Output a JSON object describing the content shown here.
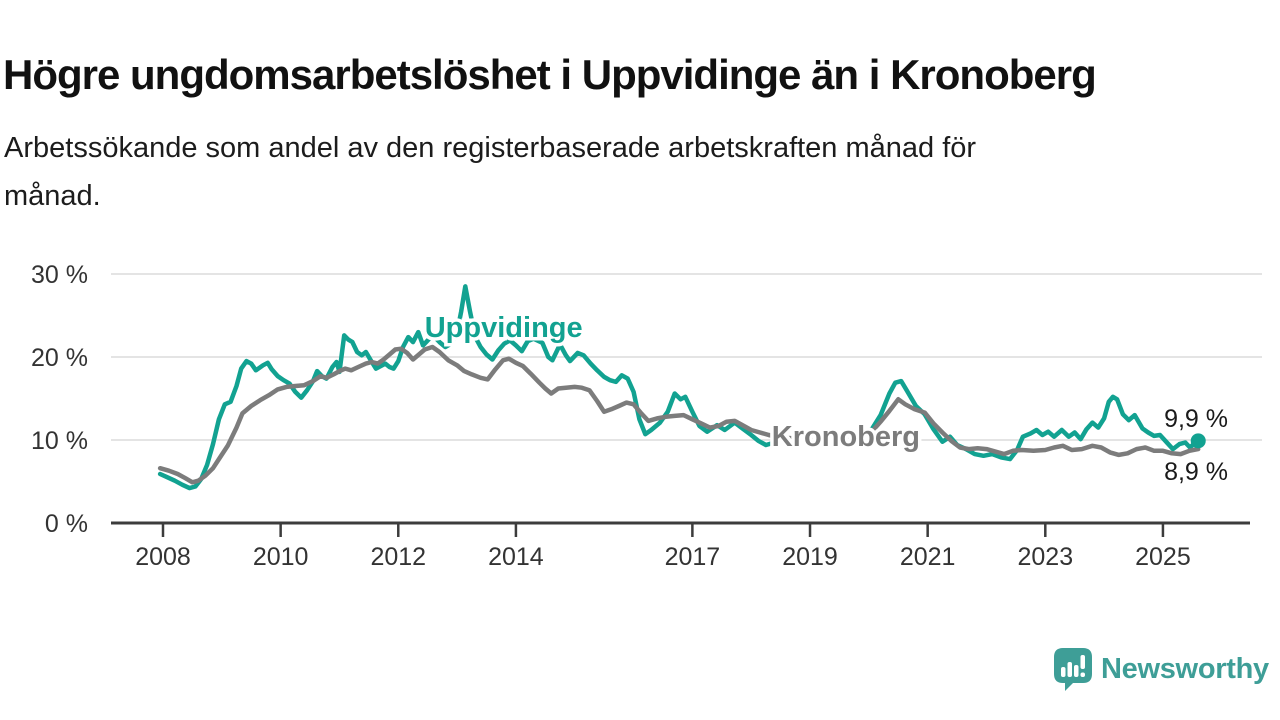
{
  "title": "Högre ungdomsarbetslöshet i Uppvidinge än i Kronoberg",
  "subtitle_lines": [
    "Arbetssökande som andel av den registerbaserade arbetskraften månad för",
    "månad."
  ],
  "footer": {
    "brand": "Newsworthy",
    "logo_icon": "speech-bubble-bar-chart-icon",
    "brand_color": "#3E9E97"
  },
  "chart_data": {
    "type": "line",
    "title": "Högre ungdomsarbetslöshet i Uppvidinge än i Kronoberg",
    "subtitle": "Arbetssökande som andel av den registerbaserade arbetskraften månad för månad.",
    "unit": "%",
    "grid": "horizontal-only",
    "colors": {
      "grid": "#DBDBDB",
      "axis": "#3C3C3C",
      "axis_text": "#333333",
      "value_text": "#1A1A1A"
    },
    "x_axis": {
      "label": "",
      "ticks": [
        2008,
        2010,
        2012,
        2014,
        2017,
        2019,
        2021,
        2023,
        2025
      ],
      "range": [
        2007.1,
        2026.5
      ]
    },
    "y_axis": {
      "label": "",
      "ticks": [
        0,
        10,
        20,
        30
      ],
      "tick_labels": [
        "0 %",
        "10 %",
        "20 %",
        "30 %"
      ],
      "range": [
        0,
        30
      ]
    },
    "series": [
      {
        "name": "Uppvidinge",
        "color": "#12A291",
        "end_label": "9,9 %",
        "end_value": 9.9,
        "end_dot": true,
        "label_pos": [
          2012.45,
          22.4
        ],
        "points": [
          [
            2007.95,
            5.9
          ],
          [
            2008.08,
            5.5
          ],
          [
            2008.2,
            5.1
          ],
          [
            2008.33,
            4.6
          ],
          [
            2008.45,
            4.2
          ],
          [
            2008.55,
            4.4
          ],
          [
            2008.65,
            5.3
          ],
          [
            2008.75,
            7.0
          ],
          [
            2008.85,
            9.5
          ],
          [
            2008.95,
            12.5
          ],
          [
            2009.05,
            14.3
          ],
          [
            2009.15,
            14.6
          ],
          [
            2009.25,
            16.5
          ],
          [
            2009.33,
            18.6
          ],
          [
            2009.42,
            19.5
          ],
          [
            2009.5,
            19.2
          ],
          [
            2009.58,
            18.4
          ],
          [
            2009.7,
            19.0
          ],
          [
            2009.78,
            19.3
          ],
          [
            2009.85,
            18.5
          ],
          [
            2009.95,
            17.7
          ],
          [
            2010.05,
            17.2
          ],
          [
            2010.15,
            16.8
          ],
          [
            2010.25,
            15.8
          ],
          [
            2010.35,
            15.1
          ],
          [
            2010.45,
            16.0
          ],
          [
            2010.55,
            17.1
          ],
          [
            2010.62,
            18.3
          ],
          [
            2010.7,
            17.7
          ],
          [
            2010.78,
            17.4
          ],
          [
            2010.88,
            18.8
          ],
          [
            2010.95,
            19.4
          ],
          [
            2011.0,
            18.2
          ],
          [
            2011.08,
            22.6
          ],
          [
            2011.15,
            22.1
          ],
          [
            2011.22,
            21.8
          ],
          [
            2011.3,
            20.6
          ],
          [
            2011.38,
            20.2
          ],
          [
            2011.45,
            20.6
          ],
          [
            2011.55,
            19.4
          ],
          [
            2011.62,
            18.6
          ],
          [
            2011.7,
            18.9
          ],
          [
            2011.78,
            19.2
          ],
          [
            2011.85,
            18.8
          ],
          [
            2011.92,
            18.6
          ],
          [
            2012.0,
            19.5
          ],
          [
            2012.08,
            21.2
          ],
          [
            2012.17,
            22.4
          ],
          [
            2012.25,
            21.8
          ],
          [
            2012.34,
            23.0
          ],
          [
            2012.42,
            21.4
          ],
          [
            2012.5,
            22.0
          ],
          [
            2012.59,
            22.6
          ],
          [
            2012.7,
            21.8
          ],
          [
            2012.8,
            21.2
          ],
          [
            2012.9,
            21.6
          ],
          [
            2013.0,
            23.0
          ],
          [
            2013.07,
            25.5
          ],
          [
            2013.14,
            28.5
          ],
          [
            2013.22,
            25.5
          ],
          [
            2013.31,
            22.4
          ],
          [
            2013.4,
            21.2
          ],
          [
            2013.5,
            20.3
          ],
          [
            2013.6,
            19.7
          ],
          [
            2013.7,
            20.8
          ],
          [
            2013.8,
            21.6
          ],
          [
            2013.9,
            22.0
          ],
          [
            2014.0,
            21.4
          ],
          [
            2014.1,
            20.7
          ],
          [
            2014.2,
            21.9
          ],
          [
            2014.3,
            22.2
          ],
          [
            2014.45,
            21.7
          ],
          [
            2014.55,
            20.0
          ],
          [
            2014.62,
            19.6
          ],
          [
            2014.75,
            21.5
          ],
          [
            2014.85,
            20.2
          ],
          [
            2014.92,
            19.5
          ],
          [
            2015.05,
            20.5
          ],
          [
            2015.15,
            20.2
          ],
          [
            2015.27,
            19.2
          ],
          [
            2015.38,
            18.4
          ],
          [
            2015.5,
            17.6
          ],
          [
            2015.6,
            17.2
          ],
          [
            2015.7,
            17.0
          ],
          [
            2015.8,
            17.8
          ],
          [
            2015.9,
            17.4
          ],
          [
            2016.0,
            15.8
          ],
          [
            2016.1,
            12.5
          ],
          [
            2016.2,
            10.7
          ],
          [
            2016.3,
            11.2
          ],
          [
            2016.45,
            12.1
          ],
          [
            2016.58,
            13.4
          ],
          [
            2016.7,
            15.6
          ],
          [
            2016.8,
            14.9
          ],
          [
            2016.88,
            15.2
          ],
          [
            2017.0,
            13.4
          ],
          [
            2017.12,
            11.7
          ],
          [
            2017.25,
            11.0
          ],
          [
            2017.42,
            11.8
          ],
          [
            2017.55,
            11.2
          ],
          [
            2017.72,
            12.1
          ],
          [
            2017.85,
            11.4
          ],
          [
            2018.0,
            10.6
          ],
          [
            2018.12,
            9.9
          ],
          [
            2018.25,
            9.4
          ],
          [
            2018.4,
            9.7
          ],
          [
            2018.6,
            10.1
          ],
          [
            2018.8,
            10.2
          ],
          [
            2019.0,
            10.0
          ],
          [
            2019.2,
            10.4
          ],
          [
            2019.4,
            10.6
          ],
          [
            2019.55,
            10.3
          ],
          [
            2019.75,
            10.7
          ],
          [
            2019.9,
            11.0
          ],
          [
            2020.05,
            11.3
          ],
          [
            2020.2,
            13.0
          ],
          [
            2020.35,
            15.6
          ],
          [
            2020.45,
            16.9
          ],
          [
            2020.55,
            17.1
          ],
          [
            2020.65,
            15.9
          ],
          [
            2020.8,
            14.1
          ],
          [
            2020.95,
            13.1
          ],
          [
            2021.1,
            11.3
          ],
          [
            2021.25,
            9.8
          ],
          [
            2021.38,
            10.4
          ],
          [
            2021.5,
            9.4
          ],
          [
            2021.65,
            8.9
          ],
          [
            2021.8,
            8.3
          ],
          [
            2021.95,
            8.1
          ],
          [
            2022.1,
            8.3
          ],
          [
            2022.25,
            7.9
          ],
          [
            2022.4,
            7.7
          ],
          [
            2022.52,
            8.8
          ],
          [
            2022.62,
            10.4
          ],
          [
            2022.75,
            10.8
          ],
          [
            2022.85,
            11.2
          ],
          [
            2022.95,
            10.6
          ],
          [
            2023.05,
            11.0
          ],
          [
            2023.15,
            10.4
          ],
          [
            2023.28,
            11.2
          ],
          [
            2023.4,
            10.4
          ],
          [
            2023.5,
            10.9
          ],
          [
            2023.6,
            10.1
          ],
          [
            2023.7,
            11.3
          ],
          [
            2023.8,
            12.1
          ],
          [
            2023.9,
            11.5
          ],
          [
            2024.0,
            12.6
          ],
          [
            2024.08,
            14.6
          ],
          [
            2024.15,
            15.2
          ],
          [
            2024.22,
            14.9
          ],
          [
            2024.32,
            13.1
          ],
          [
            2024.42,
            12.4
          ],
          [
            2024.52,
            13.0
          ],
          [
            2024.65,
            11.4
          ],
          [
            2024.75,
            10.9
          ],
          [
            2024.85,
            10.5
          ],
          [
            2024.95,
            10.6
          ],
          [
            2025.08,
            9.6
          ],
          [
            2025.17,
            8.9
          ],
          [
            2025.28,
            9.5
          ],
          [
            2025.38,
            9.7
          ],
          [
            2025.46,
            9.1
          ],
          [
            2025.55,
            9.7
          ],
          [
            2025.6,
            9.9
          ]
        ]
      },
      {
        "name": "Kronoberg",
        "color": "#7C7C7C",
        "end_label": "8,9 %",
        "end_value": 8.9,
        "end_dot": false,
        "label_pos": [
          2018.35,
          9.3
        ],
        "points": [
          [
            2007.95,
            6.6
          ],
          [
            2008.1,
            6.3
          ],
          [
            2008.25,
            5.9
          ],
          [
            2008.38,
            5.4
          ],
          [
            2008.5,
            4.9
          ],
          [
            2008.6,
            5.1
          ],
          [
            2008.72,
            5.7
          ],
          [
            2008.85,
            6.6
          ],
          [
            2008.95,
            7.7
          ],
          [
            2009.1,
            9.3
          ],
          [
            2009.25,
            11.5
          ],
          [
            2009.35,
            13.2
          ],
          [
            2009.5,
            14.1
          ],
          [
            2009.65,
            14.8
          ],
          [
            2009.8,
            15.4
          ],
          [
            2009.95,
            16.1
          ],
          [
            2010.1,
            16.4
          ],
          [
            2010.25,
            16.5
          ],
          [
            2010.4,
            16.6
          ],
          [
            2010.55,
            17.1
          ],
          [
            2010.68,
            17.7
          ],
          [
            2010.78,
            17.5
          ],
          [
            2010.9,
            17.9
          ],
          [
            2011.0,
            18.3
          ],
          [
            2011.1,
            18.6
          ],
          [
            2011.2,
            18.4
          ],
          [
            2011.32,
            18.8
          ],
          [
            2011.45,
            19.2
          ],
          [
            2011.55,
            19.4
          ],
          [
            2011.65,
            19.2
          ],
          [
            2011.75,
            19.7
          ],
          [
            2011.85,
            20.3
          ],
          [
            2011.95,
            20.9
          ],
          [
            2012.05,
            21.0
          ],
          [
            2012.15,
            20.5
          ],
          [
            2012.25,
            19.7
          ],
          [
            2012.35,
            20.3
          ],
          [
            2012.45,
            20.9
          ],
          [
            2012.58,
            21.2
          ],
          [
            2012.7,
            20.6
          ],
          [
            2012.85,
            19.6
          ],
          [
            2013.0,
            19.0
          ],
          [
            2013.12,
            18.3
          ],
          [
            2013.25,
            17.9
          ],
          [
            2013.4,
            17.5
          ],
          [
            2013.52,
            17.3
          ],
          [
            2013.65,
            18.5
          ],
          [
            2013.78,
            19.6
          ],
          [
            2013.88,
            19.8
          ],
          [
            2014.0,
            19.3
          ],
          [
            2014.12,
            18.9
          ],
          [
            2014.25,
            18.0
          ],
          [
            2014.4,
            16.9
          ],
          [
            2014.5,
            16.2
          ],
          [
            2014.6,
            15.6
          ],
          [
            2014.72,
            16.2
          ],
          [
            2014.85,
            16.3
          ],
          [
            2015.0,
            16.4
          ],
          [
            2015.12,
            16.3
          ],
          [
            2015.25,
            16.0
          ],
          [
            2015.38,
            14.7
          ],
          [
            2015.5,
            13.4
          ],
          [
            2015.62,
            13.7
          ],
          [
            2015.75,
            14.1
          ],
          [
            2015.88,
            14.5
          ],
          [
            2016.0,
            14.3
          ],
          [
            2016.12,
            13.3
          ],
          [
            2016.25,
            12.3
          ],
          [
            2016.4,
            12.6
          ],
          [
            2016.55,
            12.8
          ],
          [
            2016.7,
            12.9
          ],
          [
            2016.85,
            13.0
          ],
          [
            2017.0,
            12.5
          ],
          [
            2017.15,
            12.0
          ],
          [
            2017.3,
            11.5
          ],
          [
            2017.45,
            11.7
          ],
          [
            2017.58,
            12.2
          ],
          [
            2017.72,
            12.3
          ],
          [
            2017.85,
            11.8
          ],
          [
            2018.0,
            11.2
          ],
          [
            2018.15,
            10.9
          ],
          [
            2018.3,
            10.6
          ],
          [
            2018.5,
            10.3
          ],
          [
            2018.7,
            10.2
          ],
          [
            2018.9,
            10.2
          ],
          [
            2019.1,
            10.1
          ],
          [
            2019.3,
            10.3
          ],
          [
            2019.5,
            10.4
          ],
          [
            2019.7,
            10.4
          ],
          [
            2019.9,
            10.7
          ],
          [
            2020.05,
            11.0
          ],
          [
            2020.2,
            12.2
          ],
          [
            2020.35,
            13.5
          ],
          [
            2020.5,
            14.9
          ],
          [
            2020.62,
            14.3
          ],
          [
            2020.78,
            13.7
          ],
          [
            2020.95,
            13.3
          ],
          [
            2021.1,
            12.0
          ],
          [
            2021.25,
            10.9
          ],
          [
            2021.4,
            9.9
          ],
          [
            2021.55,
            9.1
          ],
          [
            2021.7,
            8.9
          ],
          [
            2021.85,
            9.0
          ],
          [
            2022.0,
            8.9
          ],
          [
            2022.15,
            8.6
          ],
          [
            2022.3,
            8.3
          ],
          [
            2022.45,
            8.7
          ],
          [
            2022.6,
            8.8
          ],
          [
            2022.8,
            8.7
          ],
          [
            2023.0,
            8.8
          ],
          [
            2023.15,
            9.1
          ],
          [
            2023.3,
            9.3
          ],
          [
            2023.45,
            8.8
          ],
          [
            2023.62,
            8.9
          ],
          [
            2023.8,
            9.3
          ],
          [
            2023.95,
            9.1
          ],
          [
            2024.1,
            8.5
          ],
          [
            2024.25,
            8.2
          ],
          [
            2024.4,
            8.4
          ],
          [
            2024.55,
            8.9
          ],
          [
            2024.7,
            9.1
          ],
          [
            2024.85,
            8.7
          ],
          [
            2025.0,
            8.7
          ],
          [
            2025.15,
            8.4
          ],
          [
            2025.3,
            8.3
          ],
          [
            2025.45,
            8.7
          ],
          [
            2025.6,
            8.9
          ]
        ]
      }
    ]
  }
}
